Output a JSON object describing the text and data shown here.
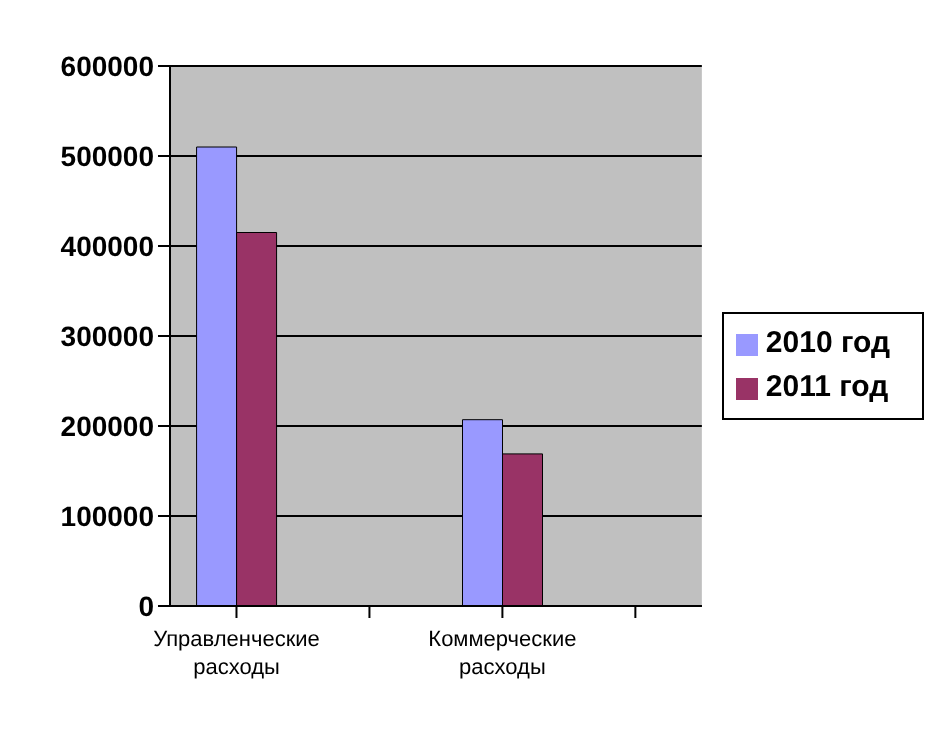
{
  "chart_data": {
    "type": "bar",
    "categories": [
      "Управленческие расходы",
      null,
      "Коммерческие расходы",
      null
    ],
    "series": [
      {
        "name": "2010 год",
        "color": "#9999ff",
        "values": [
          510000,
          null,
          207000,
          null
        ]
      },
      {
        "name": "2011 год",
        "color": "#993366",
        "values": [
          415000,
          null,
          169000,
          null
        ]
      }
    ],
    "ylim": [
      0,
      600000
    ],
    "yticks": [
      0,
      100000,
      200000,
      300000,
      400000,
      500000,
      600000
    ],
    "grid": "y",
    "legend": "right"
  }
}
